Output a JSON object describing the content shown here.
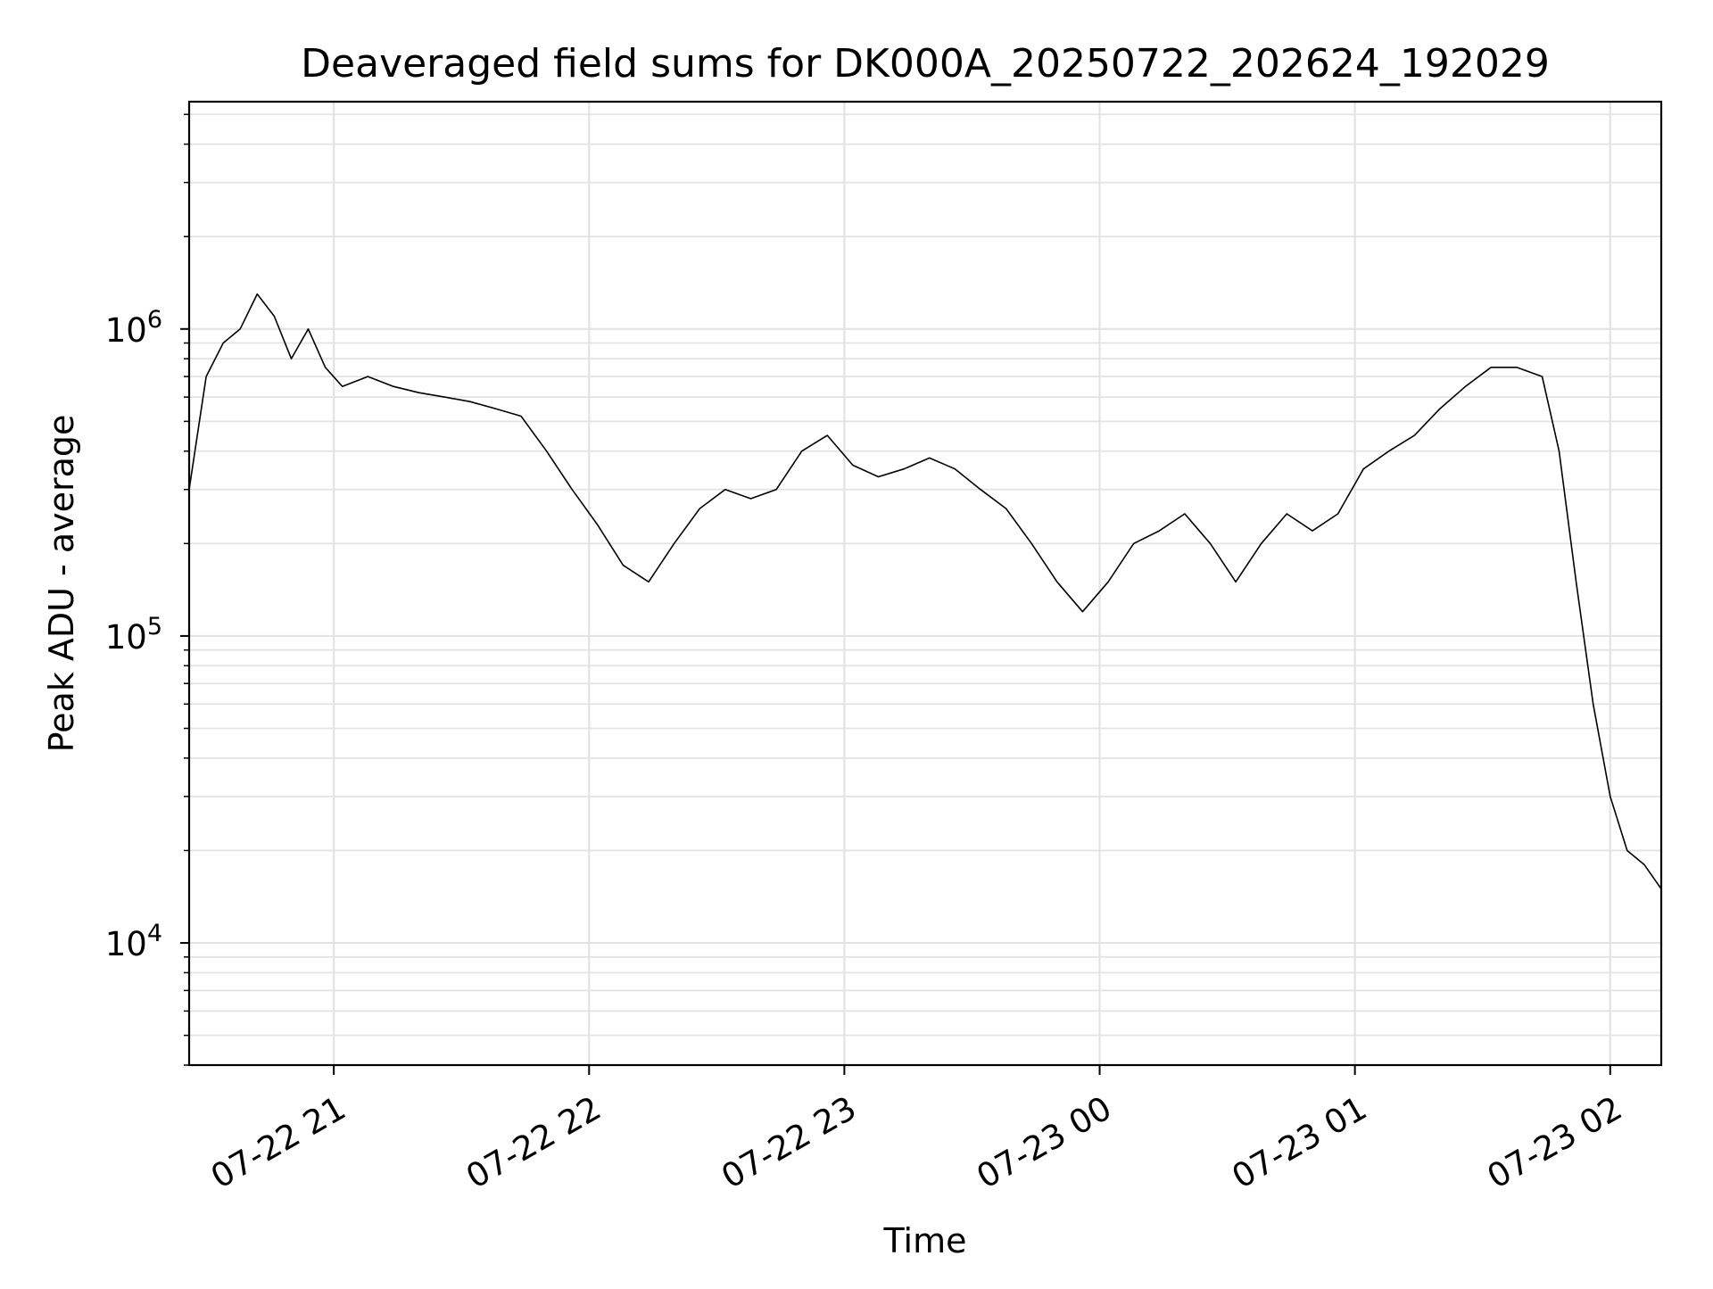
{
  "chart_data": {
    "type": "line",
    "title": "Deaveraged field sums for DK000A_20250722_202624_192029",
    "xlabel": "Time",
    "ylabel": "Peak ADU - average",
    "xscale": "time",
    "yscale": "log",
    "xlim": [
      "2025-07-22 20:26",
      "2025-07-23 02:12"
    ],
    "ylim": [
      4000,
      5500000
    ],
    "grid": true,
    "legend": "none",
    "line_color": "#000000",
    "x_ticks": [
      {
        "t": "2025-07-22 21:00",
        "label": "07-22 21"
      },
      {
        "t": "2025-07-22 22:00",
        "label": "07-22 22"
      },
      {
        "t": "2025-07-22 23:00",
        "label": "07-22 23"
      },
      {
        "t": "2025-07-23 00:00",
        "label": "07-23 00"
      },
      {
        "t": "2025-07-23 01:00",
        "label": "07-23 01"
      },
      {
        "t": "2025-07-23 02:00",
        "label": "07-23 02"
      }
    ],
    "y_ticks": [
      {
        "value": 10000,
        "base": "10",
        "exp": "4"
      },
      {
        "value": 100000,
        "base": "10",
        "exp": "5"
      },
      {
        "value": 1000000,
        "base": "10",
        "exp": "6"
      }
    ],
    "series": [
      {
        "points": [
          [
            "2025-07-22 20:26",
            300000
          ],
          [
            "2025-07-22 20:30",
            700000
          ],
          [
            "2025-07-22 20:34",
            900000
          ],
          [
            "2025-07-22 20:38",
            1000000
          ],
          [
            "2025-07-22 20:42",
            1300000
          ],
          [
            "2025-07-22 20:46",
            1100000
          ],
          [
            "2025-07-22 20:50",
            800000
          ],
          [
            "2025-07-22 20:54",
            1000000
          ],
          [
            "2025-07-22 20:58",
            750000
          ],
          [
            "2025-07-22 21:02",
            650000
          ],
          [
            "2025-07-22 21:08",
            700000
          ],
          [
            "2025-07-22 21:14",
            650000
          ],
          [
            "2025-07-22 21:20",
            620000
          ],
          [
            "2025-07-22 21:26",
            600000
          ],
          [
            "2025-07-22 21:32",
            580000
          ],
          [
            "2025-07-22 21:38",
            550000
          ],
          [
            "2025-07-22 21:44",
            520000
          ],
          [
            "2025-07-22 21:50",
            400000
          ],
          [
            "2025-07-22 21:56",
            300000
          ],
          [
            "2025-07-22 22:02",
            230000
          ],
          [
            "2025-07-22 22:08",
            170000
          ],
          [
            "2025-07-22 22:14",
            150000
          ],
          [
            "2025-07-22 22:20",
            200000
          ],
          [
            "2025-07-22 22:26",
            260000
          ],
          [
            "2025-07-22 22:32",
            300000
          ],
          [
            "2025-07-22 22:38",
            280000
          ],
          [
            "2025-07-22 22:44",
            300000
          ],
          [
            "2025-07-22 22:50",
            400000
          ],
          [
            "2025-07-22 22:56",
            450000
          ],
          [
            "2025-07-22 23:02",
            360000
          ],
          [
            "2025-07-22 23:08",
            330000
          ],
          [
            "2025-07-22 23:14",
            350000
          ],
          [
            "2025-07-22 23:20",
            380000
          ],
          [
            "2025-07-22 23:26",
            350000
          ],
          [
            "2025-07-22 23:32",
            300000
          ],
          [
            "2025-07-22 23:38",
            260000
          ],
          [
            "2025-07-22 23:44",
            200000
          ],
          [
            "2025-07-22 23:50",
            150000
          ],
          [
            "2025-07-22 23:56",
            120000
          ],
          [
            "2025-07-23 00:02",
            150000
          ],
          [
            "2025-07-23 00:08",
            200000
          ],
          [
            "2025-07-23 00:14",
            220000
          ],
          [
            "2025-07-23 00:20",
            250000
          ],
          [
            "2025-07-23 00:26",
            200000
          ],
          [
            "2025-07-23 00:32",
            150000
          ],
          [
            "2025-07-23 00:38",
            200000
          ],
          [
            "2025-07-23 00:44",
            250000
          ],
          [
            "2025-07-23 00:50",
            220000
          ],
          [
            "2025-07-23 00:56",
            250000
          ],
          [
            "2025-07-23 01:02",
            350000
          ],
          [
            "2025-07-23 01:08",
            400000
          ],
          [
            "2025-07-23 01:14",
            450000
          ],
          [
            "2025-07-23 01:20",
            550000
          ],
          [
            "2025-07-23 01:26",
            650000
          ],
          [
            "2025-07-23 01:32",
            750000
          ],
          [
            "2025-07-23 01:38",
            750000
          ],
          [
            "2025-07-23 01:44",
            700000
          ],
          [
            "2025-07-23 01:48",
            400000
          ],
          [
            "2025-07-23 01:52",
            150000
          ],
          [
            "2025-07-23 01:56",
            60000
          ],
          [
            "2025-07-23 02:00",
            30000
          ],
          [
            "2025-07-23 02:04",
            20000
          ],
          [
            "2025-07-23 02:08",
            18000
          ],
          [
            "2025-07-23 02:12",
            15000
          ]
        ]
      }
    ]
  }
}
